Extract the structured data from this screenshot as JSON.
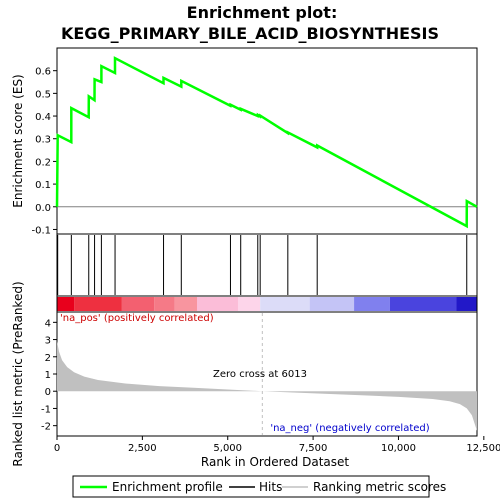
{
  "chart_data": {
    "type": "line",
    "title_lines": [
      "Enrichment plot:",
      "KEGG_PRIMARY_BILE_ACID_BIOSYNTHESIS"
    ],
    "ylabel_es": "Enrichment score (ES)",
    "ylabel_metric": "Ranked list metric (PreRanked)",
    "xlabel": "Rank in Ordered Dataset",
    "x_range": [
      0,
      12300
    ],
    "x_ticks": [
      0,
      2500,
      5000,
      7500,
      10000,
      12500
    ],
    "x_tick_labels": [
      "0",
      "2,500",
      "5,000",
      "7,500",
      "10,000",
      "12,500"
    ],
    "es_range": [
      -0.12,
      0.7
    ],
    "es_ticks": [
      -0.1,
      0.0,
      0.1,
      0.2,
      0.3,
      0.4,
      0.5,
      0.6
    ],
    "es_tick_labels": [
      "-0.1",
      "0.0",
      "0.1",
      "0.2",
      "0.3",
      "0.4",
      "0.5",
      "0.6"
    ],
    "metric_range": [
      -2.6,
      4.6
    ],
    "metric_ticks": [
      -2,
      -1,
      0,
      1,
      2,
      3,
      4
    ],
    "metric_tick_labels": [
      "-2",
      "-1",
      "0",
      "1",
      "2",
      "3",
      "4"
    ],
    "hits": [
      20,
      420,
      930,
      1100,
      1300,
      1700,
      3120,
      3640,
      5080,
      5380,
      5880,
      5950,
      6760,
      7620,
      12000
    ],
    "enrichment_profile": [
      [
        0,
        0.0
      ],
      [
        20,
        0.315
      ],
      [
        419,
        0.285
      ],
      [
        420,
        0.435
      ],
      [
        929,
        0.395
      ],
      [
        930,
        0.487
      ],
      [
        1099,
        0.47
      ],
      [
        1100,
        0.562
      ],
      [
        1299,
        0.55
      ],
      [
        1300,
        0.62
      ],
      [
        1699,
        0.59
      ],
      [
        1700,
        0.655
      ],
      [
        3119,
        0.545
      ],
      [
        3120,
        0.568
      ],
      [
        3639,
        0.53
      ],
      [
        3640,
        0.555
      ],
      [
        5079,
        0.445
      ],
      [
        5080,
        0.45
      ],
      [
        5379,
        0.428
      ],
      [
        5380,
        0.432
      ],
      [
        5879,
        0.4
      ],
      [
        5880,
        0.405
      ],
      [
        5949,
        0.398
      ],
      [
        5950,
        0.402
      ],
      [
        6759,
        0.325
      ],
      [
        6760,
        0.328
      ],
      [
        7619,
        0.262
      ],
      [
        7620,
        0.27
      ],
      [
        11999,
        -0.085
      ],
      [
        12000,
        0.025
      ],
      [
        12300,
        0.0
      ]
    ],
    "metric_profile": [
      [
        0,
        2.9
      ],
      [
        60,
        2.3
      ],
      [
        150,
        1.8
      ],
      [
        300,
        1.4
      ],
      [
        500,
        1.1
      ],
      [
        800,
        0.85
      ],
      [
        1200,
        0.65
      ],
      [
        2000,
        0.45
      ],
      [
        3000,
        0.3
      ],
      [
        4000,
        0.2
      ],
      [
        5000,
        0.1
      ],
      [
        6013,
        0.0
      ],
      [
        7000,
        -0.08
      ],
      [
        8000,
        -0.16
      ],
      [
        9000,
        -0.24
      ],
      [
        10000,
        -0.33
      ],
      [
        11000,
        -0.45
      ],
      [
        11500,
        -0.58
      ],
      [
        11800,
        -0.75
      ],
      [
        12000,
        -1.0
      ],
      [
        12150,
        -1.4
      ],
      [
        12250,
        -2.0
      ],
      [
        12300,
        -2.3
      ]
    ],
    "zero_cross": 6013,
    "zero_cross_label": "Zero cross at 6013",
    "pos_label": "'na_pos' (positively correlated)",
    "neg_label": "'na_neg' (negatively correlated)",
    "heat_segments": [
      {
        "end": 500,
        "color": "#e8001c"
      },
      {
        "end": 1900,
        "color": "#ee3040"
      },
      {
        "end": 2850,
        "color": "#f36070"
      },
      {
        "end": 3450,
        "color": "#f57a87"
      },
      {
        "end": 4100,
        "color": "#f8959f"
      },
      {
        "end": 5300,
        "color": "#fbbdd8"
      },
      {
        "end": 5950,
        "color": "#fdd5ea"
      },
      {
        "end": 7400,
        "color": "#dcdcf8"
      },
      {
        "end": 8700,
        "color": "#c4c4f6"
      },
      {
        "end": 9750,
        "color": "#8080ee"
      },
      {
        "end": 11700,
        "color": "#4a44de"
      },
      {
        "end": 12300,
        "color": "#2218c8"
      }
    ],
    "legend": [
      {
        "label": "Enrichment profile",
        "color": "#00ff00"
      },
      {
        "label": "Hits",
        "color": "#000000"
      },
      {
        "label": "Ranking metric scores",
        "color": "#c0c0c0"
      }
    ],
    "colors": {
      "profile": "#00ff00",
      "hits": "#000000",
      "metric_fill": "#c0c0c0",
      "pos_text": "#cc0000",
      "neg_text": "#0000cc",
      "zero_line": "#c0c0c0"
    }
  }
}
